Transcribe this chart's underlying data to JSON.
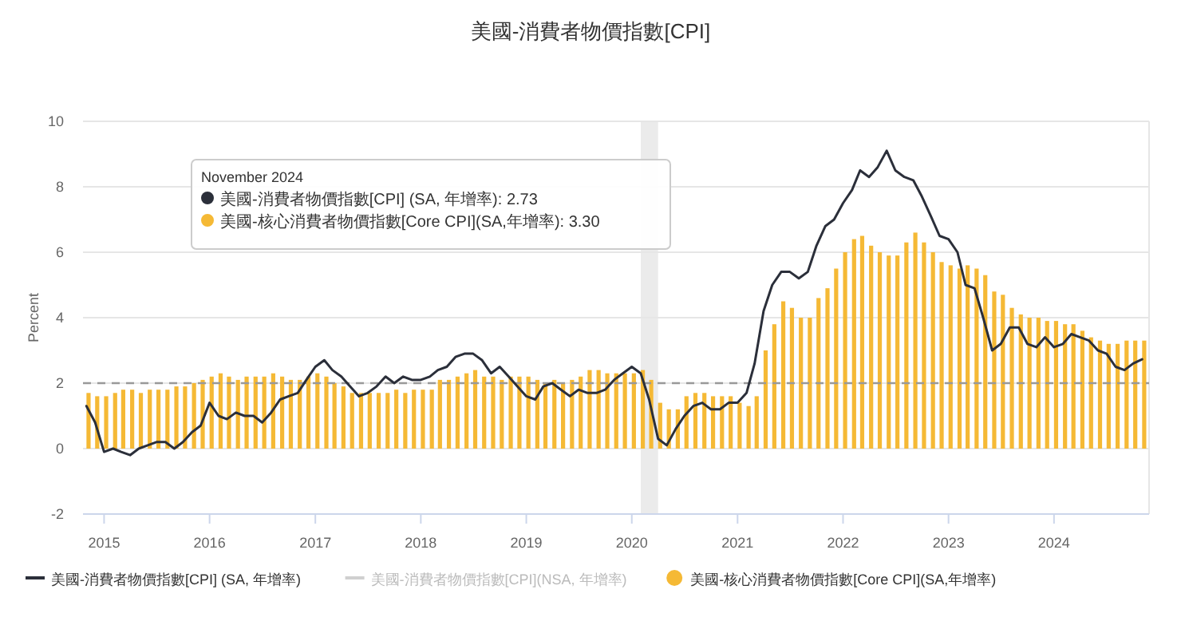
{
  "chart_data": {
    "type": "bar",
    "title": "美國-消費者物價指數[CPI]",
    "ylabel": "Percent",
    "x": [
      "2014-11",
      "2014-12",
      "2015-01",
      "2015-02",
      "2015-03",
      "2015-04",
      "2015-05",
      "2015-06",
      "2015-07",
      "2015-08",
      "2015-09",
      "2015-10",
      "2015-11",
      "2015-12",
      "2016-01",
      "2016-02",
      "2016-03",
      "2016-04",
      "2016-05",
      "2016-06",
      "2016-07",
      "2016-08",
      "2016-09",
      "2016-10",
      "2016-11",
      "2016-12",
      "2017-01",
      "2017-02",
      "2017-03",
      "2017-04",
      "2017-05",
      "2017-06",
      "2017-07",
      "2017-08",
      "2017-09",
      "2017-10",
      "2017-11",
      "2017-12",
      "2018-01",
      "2018-02",
      "2018-03",
      "2018-04",
      "2018-05",
      "2018-06",
      "2018-07",
      "2018-08",
      "2018-09",
      "2018-10",
      "2018-11",
      "2018-12",
      "2019-01",
      "2019-02",
      "2019-03",
      "2019-04",
      "2019-05",
      "2019-06",
      "2019-07",
      "2019-08",
      "2019-09",
      "2019-10",
      "2019-11",
      "2019-12",
      "2020-01",
      "2020-02",
      "2020-03",
      "2020-04",
      "2020-05",
      "2020-06",
      "2020-07",
      "2020-08",
      "2020-09",
      "2020-10",
      "2020-11",
      "2020-12",
      "2021-01",
      "2021-02",
      "2021-03",
      "2021-04",
      "2021-05",
      "2021-06",
      "2021-07",
      "2021-08",
      "2021-09",
      "2021-10",
      "2021-11",
      "2021-12",
      "2022-01",
      "2022-02",
      "2022-03",
      "2022-04",
      "2022-05",
      "2022-06",
      "2022-07",
      "2022-08",
      "2022-09",
      "2022-10",
      "2022-11",
      "2022-12",
      "2023-01",
      "2023-02",
      "2023-03",
      "2023-04",
      "2023-05",
      "2023-06",
      "2023-07",
      "2023-08",
      "2023-09",
      "2023-10",
      "2023-11",
      "2023-12",
      "2024-01",
      "2024-02",
      "2024-03",
      "2024-04",
      "2024-05",
      "2024-06",
      "2024-07",
      "2024-08",
      "2024-09",
      "2024-10",
      "2024-11"
    ],
    "series": [
      {
        "name": "美國-消費者物價指數[CPI] (SA, 年增率)",
        "type": "line",
        "color": "#2b2f3a",
        "values": [
          1.3,
          0.8,
          -0.1,
          0.0,
          -0.1,
          -0.2,
          0.0,
          0.1,
          0.2,
          0.2,
          0.0,
          0.2,
          0.5,
          0.7,
          1.4,
          1.0,
          0.9,
          1.1,
          1.0,
          1.0,
          0.8,
          1.1,
          1.5,
          1.6,
          1.7,
          2.1,
          2.5,
          2.7,
          2.4,
          2.2,
          1.9,
          1.6,
          1.7,
          1.9,
          2.2,
          2.0,
          2.2,
          2.1,
          2.1,
          2.2,
          2.4,
          2.5,
          2.8,
          2.9,
          2.9,
          2.7,
          2.3,
          2.5,
          2.2,
          1.9,
          1.6,
          1.5,
          1.9,
          2.0,
          1.8,
          1.6,
          1.8,
          1.7,
          1.7,
          1.8,
          2.1,
          2.3,
          2.5,
          2.3,
          1.5,
          0.3,
          0.1,
          0.6,
          1.0,
          1.3,
          1.4,
          1.2,
          1.2,
          1.4,
          1.4,
          1.7,
          2.6,
          4.2,
          5.0,
          5.4,
          5.4,
          5.2,
          5.4,
          6.2,
          6.8,
          7.0,
          7.5,
          7.9,
          8.5,
          8.3,
          8.6,
          9.1,
          8.5,
          8.3,
          8.2,
          7.7,
          7.1,
          6.5,
          6.4,
          6.0,
          5.0,
          4.9,
          4.0,
          3.0,
          3.2,
          3.7,
          3.7,
          3.2,
          3.1,
          3.4,
          3.1,
          3.2,
          3.5,
          3.4,
          3.3,
          3.0,
          2.9,
          2.5,
          2.4,
          2.6,
          2.73
        ]
      },
      {
        "name": "美國-消費者物價指數[CPI](NSA, 年增率)",
        "type": "line",
        "color": "#d0d0d0",
        "values": [
          null,
          null,
          null,
          null,
          null,
          null,
          null,
          null,
          null,
          null,
          null,
          null,
          null,
          null,
          null,
          null,
          null,
          null,
          null,
          null,
          null,
          null,
          null,
          null,
          null,
          null,
          null,
          null,
          null,
          null,
          null,
          null,
          null,
          null,
          null,
          null,
          null,
          null,
          null,
          null,
          null,
          null,
          null,
          null,
          null,
          null,
          null,
          null,
          null,
          null,
          null,
          null,
          null,
          null,
          null,
          null,
          null,
          null,
          null,
          null,
          null,
          null,
          null,
          null,
          null,
          null,
          null,
          null,
          null,
          null,
          null,
          null,
          null,
          null,
          null,
          null,
          null,
          null,
          null,
          null,
          null,
          null,
          null,
          null,
          null,
          null,
          null,
          null,
          null,
          null,
          null,
          null,
          null,
          null,
          null,
          null,
          null,
          null,
          null,
          null,
          null,
          null,
          null,
          null,
          null,
          null,
          null,
          null,
          null,
          null,
          null,
          null,
          null,
          null,
          null,
          null,
          null,
          null,
          null,
          null,
          null
        ]
      },
      {
        "name": "美國-核心消費者物價指數[Core CPI](SA,年增率)",
        "color": "#f5b935",
        "values": [
          1.7,
          1.6,
          1.6,
          1.7,
          1.8,
          1.8,
          1.7,
          1.8,
          1.8,
          1.8,
          1.9,
          1.9,
          2.0,
          2.1,
          2.2,
          2.3,
          2.2,
          2.1,
          2.2,
          2.2,
          2.2,
          2.3,
          2.2,
          2.1,
          2.1,
          2.2,
          2.3,
          2.2,
          2.0,
          1.9,
          1.7,
          1.7,
          1.7,
          1.7,
          1.7,
          1.8,
          1.7,
          1.8,
          1.8,
          1.8,
          2.1,
          2.1,
          2.2,
          2.3,
          2.4,
          2.2,
          2.2,
          2.1,
          2.2,
          2.2,
          2.2,
          2.1,
          2.0,
          2.1,
          2.0,
          2.1,
          2.2,
          2.4,
          2.4,
          2.3,
          2.3,
          2.3,
          2.3,
          2.4,
          2.1,
          1.4,
          1.2,
          1.2,
          1.6,
          1.7,
          1.7,
          1.6,
          1.6,
          1.6,
          1.4,
          1.3,
          1.6,
          3.0,
          3.8,
          4.5,
          4.3,
          4.0,
          4.0,
          4.6,
          4.9,
          5.5,
          6.0,
          6.4,
          6.5,
          6.2,
          6.0,
          5.9,
          5.9,
          6.3,
          6.6,
          6.3,
          6.0,
          5.7,
          5.6,
          5.5,
          5.6,
          5.5,
          5.3,
          4.8,
          4.7,
          4.3,
          4.1,
          4.0,
          4.0,
          3.9,
          3.9,
          3.8,
          3.8,
          3.6,
          3.4,
          3.3,
          3.2,
          3.2,
          3.3,
          3.3,
          3.3
        ]
      }
    ],
    "xlim": [
      "2014-10-20",
      "2024-11-25"
    ],
    "xticks": [
      "2015",
      "2016",
      "2017",
      "2018",
      "2019",
      "2020",
      "2021",
      "2022",
      "2023",
      "2024"
    ],
    "ylim": [
      -2,
      10
    ],
    "yticks": [
      -2,
      0,
      2,
      4,
      6,
      8,
      10
    ],
    "grid": "y",
    "legend": "bottom",
    "ref_lines": [
      {
        "axis": "y",
        "value": 2,
        "color": "#999999",
        "line_style": "dashed"
      }
    ],
    "bands": [
      {
        "axis": "x",
        "from": "2020-02",
        "to": "2020-04",
        "color": "#ebebeb"
      }
    ],
    "annotations": [
      "November 2024",
      "美國-消費者物價指數[CPI] (SA, 年增率): 2.73",
      "美國-核心消費者物價指數[Core CPI](SA,年增率): 3.30"
    ]
  }
}
